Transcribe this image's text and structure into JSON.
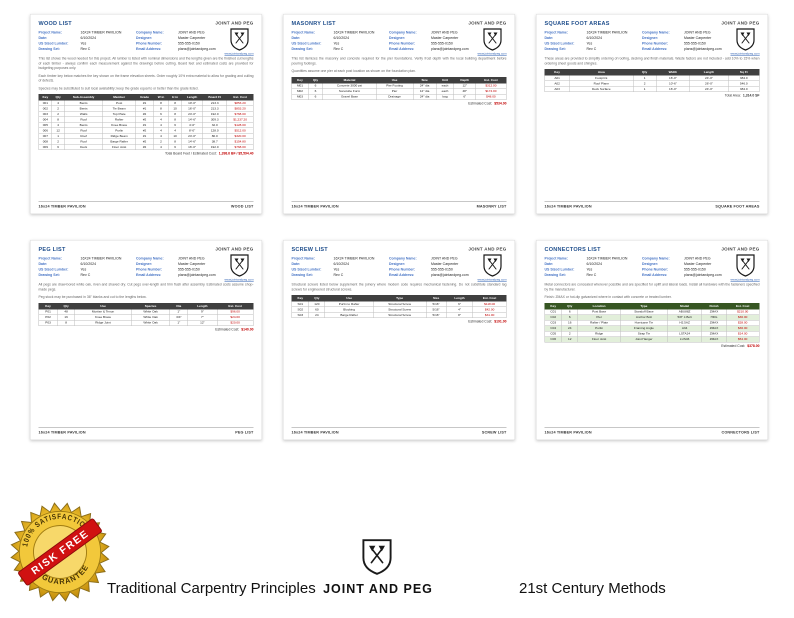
{
  "brand": "JOINT AND PEG",
  "website": "www.jointandpeg.com",
  "footer_left": "16x24 TIMBER PAVILION",
  "project_info": {
    "left": [
      {
        "label": "Project Name:",
        "value": "16X24 TIMBER PAVILION"
      },
      {
        "label": "Date:",
        "value": "6/10/2024"
      },
      {
        "label": "US Sized Lumber:",
        "value": "Yes"
      },
      {
        "label": "Drawing Set:",
        "value": "Rev C"
      }
    ],
    "right": [
      {
        "label": "Company Name:",
        "value": "JOINT AND PEG"
      },
      {
        "label": "Designer:",
        "value": "Master Carpenter"
      },
      {
        "label": "Phone Number:",
        "value": "555-555-0150"
      },
      {
        "label": "Email Address:",
        "value": "plans@jointandpeg.com"
      }
    ]
  },
  "pages": [
    {
      "title": "WOOD LIST",
      "footer_right": "WOOD LIST",
      "paragraphs": [
        "This list shows the wood needed for this project. All lumber is listed with nominal dimensions and the lengths given are the finished cut lengths of each timber - always confirm each measurement against the drawings before cutting. Board feet and estimated costs are provided for budgeting purposes only.",
        "Each timber key below matches the key shown on the frame elevation sheets. Order roughly 10% extra material to allow for grading and culling of defects.",
        "Species may be substituted to suit local availability; keep the grade equal to or better than the grade listed."
      ],
      "table": {
        "style": "dark",
        "headers": [
          "Key",
          "Qty",
          "Sub-Assembly",
          "Member",
          "Grade",
          "W in",
          "H in",
          "Length",
          "Board Ft",
          "Est. Cost"
        ],
        "red_cols": [
          9
        ],
        "rows": [
          [
            "001",
            "4",
            "Bents",
            "Post",
            "#1",
            "8",
            "8",
            "10'-0\"",
            "213.3",
            "$853.20"
          ],
          [
            "002",
            "2",
            "Bents",
            "Tie Beam",
            "#1",
            "8",
            "10",
            "16'-0\"",
            "213.3",
            "$853.20"
          ],
          [
            "003",
            "2",
            "Walls",
            "Top Plate",
            "#2",
            "6",
            "8",
            "24'-0\"",
            "192.0",
            "$768.00"
          ],
          [
            "004",
            "8",
            "Roof",
            "Rafter",
            "#2",
            "4",
            "8",
            "14'-6\"",
            "309.3",
            "$1,237.20"
          ],
          [
            "005",
            "4",
            "Bents",
            "Knee Brace",
            "#1",
            "4",
            "6",
            "4'-0\"",
            "32.0",
            "$128.00"
          ],
          [
            "006",
            "12",
            "Roof",
            "Purlin",
            "#2",
            "4",
            "4",
            "8'-0\"",
            "128.0",
            "$512.00"
          ],
          [
            "007",
            "1",
            "Roof",
            "Ridge Beam",
            "#1",
            "4",
            "10",
            "24'-0\"",
            "80.0",
            "$320.00"
          ],
          [
            "008",
            "2",
            "Roof",
            "Barge Rafter",
            "#2",
            "2",
            "8",
            "14'-6\"",
            "38.7",
            "$154.80"
          ],
          [
            "009",
            "6",
            "Deck",
            "Floor Joist",
            "#2",
            "4",
            "6",
            "16'-0\"",
            "192.0",
            "$768.00"
          ]
        ]
      },
      "total": {
        "label": "Total Board Feet / Estimated Cost:",
        "value": "1,398.6 BF  /  $5,594.40",
        "red": true
      }
    },
    {
      "title": "MASONRY LIST",
      "footer_right": "MASONRY LIST",
      "paragraphs": [
        "This list itemizes the masonry and concrete required for the pier foundations. Verify frost depth with the local building department before pouring footings.",
        "Quantities assume one pier at each post location as shown on the foundation plan."
      ],
      "table": {
        "style": "dark",
        "headers": [
          "Key",
          "Qty",
          "Material",
          "Use",
          "Size",
          "Unit",
          "Depth",
          "Est. Cost"
        ],
        "red_cols": [
          7
        ],
        "rows": [
          [
            "M01",
            "6",
            "Concrete 3000 psi",
            "Pier Footing",
            "24\" dia",
            "each",
            "12\"",
            "$312.00"
          ],
          [
            "M02",
            "6",
            "Sonotube Form",
            "Pier",
            "12\" dia",
            "each",
            "48\"",
            "$174.00"
          ],
          [
            "M03",
            "6",
            "Gravel Base",
            "Drainage",
            "24\" dia",
            "bag",
            "6\"",
            "$48.00"
          ]
        ]
      },
      "total": {
        "label": "Estimated Cost:",
        "value": "$534.00",
        "red": true
      }
    },
    {
      "title": "SQUARE FOOT AREAS",
      "footer_right": "SQUARE FOOT AREAS",
      "paragraphs": [
        "These areas are provided to simplify ordering of roofing, decking and finish materials. Waste factors are not included - add 10% to 15% when ordering sheet goods and shingles."
      ],
      "table": {
        "style": "dark",
        "headers": [
          "Key",
          "Area",
          "Qty",
          "Width",
          "Length",
          "Sq Ft"
        ],
        "red_cols": [],
        "rows": [
          [
            "A01",
            "Footprint",
            "1",
            "16'-0\"",
            "24'-0\"",
            "384.0"
          ],
          [
            "A02",
            "Roof Plane",
            "2",
            "10'-6\"",
            "26'-0\"",
            "546.0"
          ],
          [
            "A03",
            "Deck Surface",
            "1",
            "16'-0\"",
            "24'-0\"",
            "384.0"
          ]
        ]
      },
      "total": {
        "label": "Total Area:",
        "value": "1,314.0 SF",
        "red": false
      }
    },
    {
      "title": "PEG LIST",
      "footer_right": "PEG LIST",
      "paragraphs": [
        "All pegs are draw-bored white oak, riven and shaved dry. Cut pegs over-length and trim flush after assembly. Estimated costs assume shop-made pegs.",
        "Peg stock may be purchased in 36\" blanks and cut to the lengths below."
      ],
      "table": {
        "style": "dark",
        "headers": [
          "Key",
          "Qty",
          "Use",
          "Species",
          "Dia",
          "Length",
          "Est. Cost"
        ],
        "red_cols": [
          6
        ],
        "rows": [
          [
            "P01",
            "48",
            "Mortise & Tenon",
            "White Oak",
            "1\"",
            "9\"",
            "$96.00"
          ],
          [
            "P02",
            "16",
            "Knee Brace",
            "White Oak",
            "3/4\"",
            "7\"",
            "$24.00"
          ],
          [
            "P03",
            "8",
            "Ridge Joint",
            "White Oak",
            "1\"",
            "12\"",
            "$20.00"
          ]
        ]
      },
      "total": {
        "label": "Estimated Cost:",
        "value": "$140.00",
        "red": true
      }
    },
    {
      "title": "SCREW LIST",
      "footer_right": "SCREW LIST",
      "paragraphs": [
        "Structural screws listed below supplement the joinery where modern code requires mechanical fastening. Do not substitute standard lag screws for engineered structural screws."
      ],
      "table": {
        "style": "dark",
        "headers": [
          "Key",
          "Qty",
          "Use",
          "Type",
          "Size",
          "Length",
          "Est. Cost"
        ],
        "red_cols": [
          6
        ],
        "rows": [
          [
            "S01",
            "120",
            "Purlin to Rafter",
            "Structural Screw",
            "5/16\"",
            "6\"",
            "$118.00"
          ],
          [
            "S02",
            "60",
            "Blocking",
            "Structural Screw",
            "5/16\"",
            "4\"",
            "$42.00"
          ],
          [
            "S03",
            "24",
            "Barge Rafter",
            "Structural Screw",
            "5/16\"",
            "8\"",
            "$31.00"
          ]
        ]
      },
      "total": {
        "label": "Estimated Cost:",
        "value": "$191.00",
        "red": true
      }
    },
    {
      "title": "CONNECTORS LIST",
      "footer_right": "CONNECTORS LIST",
      "paragraphs": [
        "Metal connectors are concealed wherever possible and are specified for uplift and lateral loads. Install all hardware with the fasteners specified by the manufacturer.",
        "Finish: ZMAX or hot-dip galvanized where in contact with concrete or treated lumber."
      ],
      "table": {
        "style": "green",
        "headers": [
          "Key",
          "Qty",
          "Location",
          "Type",
          "Model",
          "Finish",
          "Est. Cost"
        ],
        "red_cols": [
          6
        ],
        "rows": [
          [
            "C01",
            "6",
            "Post Base",
            "Standoff Base",
            "ABU88Z",
            "ZMAX",
            "$210.00"
          ],
          [
            "C02",
            "6",
            "Pier",
            "Anchor Bolt",
            "5/8\" J-Bolt",
            "HDG",
            "$36.00"
          ],
          [
            "C03",
            "16",
            "Rafter / Plate",
            "Hurricane Tie",
            "H2.5AZ",
            "ZMAX",
            "$28.00"
          ],
          [
            "C04",
            "24",
            "Purlin",
            "Framing Angle",
            "A34",
            "ZMAX",
            "$36.00"
          ],
          [
            "C05",
            "2",
            "Ridge",
            "Strap Tie",
            "LSTA24",
            "ZMAX",
            "$14.00"
          ],
          [
            "C06",
            "12",
            "Floor Joist",
            "Joist Hanger",
            "LUS46",
            "ZMAX",
            "$54.00"
          ]
        ]
      },
      "total": {
        "label": "Estimated Cost:",
        "value": "$378.00",
        "red": true
      }
    }
  ],
  "footer_band": {
    "left_text": "Traditional Carpentry Principles",
    "brand": "JOINT AND PEG",
    "right_text": "21st Century Methods"
  },
  "seal": {
    "arc_top": "100% SATISFACTION",
    "banner": "RISK FREE",
    "arc_bottom": "GUARANTEE"
  }
}
